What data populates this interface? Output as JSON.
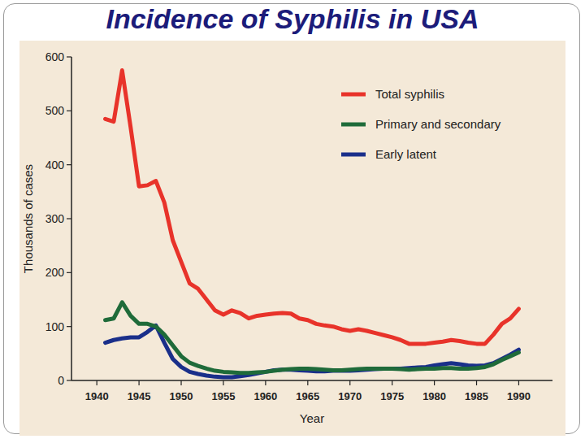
{
  "chart_data": {
    "type": "line",
    "title": "Incidence of Syphilis in USA",
    "x_label": "Year",
    "y_label": "Thousands of cases",
    "x": [
      1941,
      1942,
      1943,
      1944,
      1945,
      1946,
      1947,
      1948,
      1949,
      1950,
      1951,
      1952,
      1953,
      1954,
      1955,
      1956,
      1957,
      1958,
      1959,
      1960,
      1961,
      1962,
      1963,
      1964,
      1965,
      1966,
      1967,
      1968,
      1969,
      1970,
      1971,
      1972,
      1973,
      1974,
      1975,
      1976,
      1977,
      1978,
      1979,
      1980,
      1981,
      1982,
      1983,
      1984,
      1985,
      1986,
      1987,
      1988,
      1989,
      1990
    ],
    "series": [
      {
        "name": "Total syphilis",
        "color": "#e8332a",
        "values": [
          485,
          480,
          575,
          470,
          360,
          362,
          370,
          330,
          260,
          220,
          180,
          170,
          150,
          130,
          122,
          130,
          125,
          115,
          120,
          122,
          124,
          125,
          124,
          115,
          112,
          105,
          102,
          100,
          95,
          92,
          95,
          92,
          88,
          84,
          80,
          75,
          68,
          68,
          68,
          70,
          72,
          75,
          73,
          70,
          68,
          68,
          85,
          105,
          115,
          133
        ]
      },
      {
        "name": "Primary and secondary",
        "color": "#1f6b3a",
        "values": [
          112,
          115,
          145,
          120,
          105,
          105,
          100,
          85,
          65,
          45,
          33,
          27,
          22,
          18,
          16,
          15,
          14,
          14,
          15,
          16,
          18,
          20,
          21,
          22,
          22,
          21,
          20,
          19,
          19,
          20,
          21,
          22,
          22,
          22,
          22,
          21,
          20,
          21,
          22,
          22,
          23,
          23,
          22,
          22,
          23,
          25,
          30,
          38,
          45,
          52
        ]
      },
      {
        "name": "Early latent",
        "color": "#1a2f8a",
        "values": [
          70,
          75,
          78,
          80,
          80,
          90,
          102,
          70,
          40,
          25,
          16,
          12,
          9,
          7,
          6,
          6,
          8,
          10,
          13,
          16,
          19,
          20,
          20,
          19,
          18,
          17,
          17,
          18,
          18,
          18,
          19,
          20,
          21,
          22,
          22,
          22,
          23,
          24,
          25,
          28,
          30,
          32,
          30,
          28,
          27,
          28,
          32,
          40,
          48,
          57
        ]
      }
    ],
    "xlim": [
      1937,
      1994
    ],
    "xticks": [
      1940,
      1945,
      1950,
      1955,
      1960,
      1965,
      1970,
      1975,
      1980,
      1985,
      1990
    ],
    "ylim": [
      0,
      600
    ],
    "yticks": [
      0,
      100,
      200,
      300,
      400,
      500,
      600
    ],
    "grid": false,
    "legend": "upper right"
  }
}
